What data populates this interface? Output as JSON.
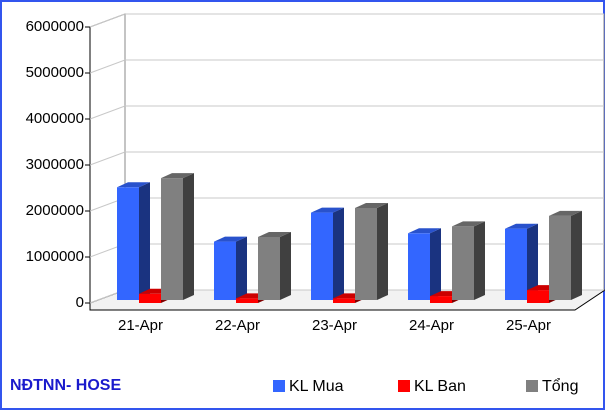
{
  "chart_data": {
    "type": "bar3d",
    "title": "NĐTNN- HOSE",
    "categories": [
      "21-Apr",
      "22-Apr",
      "23-Apr",
      "24-Apr",
      "25-Apr"
    ],
    "series": [
      {
        "name": "KL Mua",
        "color": "#3366ff",
        "values": [
          2450000,
          1270000,
          1900000,
          1450000,
          1550000
        ]
      },
      {
        "name": "KL Ban",
        "color": "#ff0000",
        "values": [
          200000,
          100000,
          100000,
          150000,
          280000
        ]
      },
      {
        "name": "Tổng",
        "color": "#808080",
        "values": [
          2650000,
          1370000,
          2000000,
          1600000,
          1830000
        ]
      }
    ],
    "ylim": [
      0,
      6000000
    ],
    "yticks": [
      0,
      1000000,
      2000000,
      3000000,
      4000000,
      5000000,
      6000000
    ],
    "grid": true
  }
}
